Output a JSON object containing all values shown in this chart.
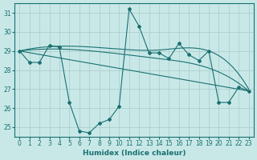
{
  "xlabel": "Humidex (Indice chaleur)",
  "background_color": "#c8e8e8",
  "grid_color": "#aacaca",
  "line_color": "#1a7070",
  "xlim": [
    -0.5,
    23.5
  ],
  "ylim": [
    24.5,
    31.5
  ],
  "yticks": [
    25,
    26,
    27,
    28,
    29,
    30,
    31
  ],
  "xticks": [
    0,
    1,
    2,
    3,
    4,
    5,
    6,
    7,
    8,
    9,
    10,
    11,
    12,
    13,
    14,
    15,
    16,
    17,
    18,
    19,
    20,
    21,
    22,
    23
  ],
  "jagged_x": [
    0,
    1,
    2,
    3,
    4,
    5,
    6,
    7,
    8,
    9,
    10,
    11,
    12,
    13,
    14,
    15,
    16,
    17,
    18,
    19,
    20,
    21,
    22,
    23
  ],
  "jagged_y": [
    29.0,
    28.4,
    28.4,
    29.3,
    29.2,
    26.3,
    24.8,
    24.7,
    25.2,
    25.4,
    26.1,
    31.2,
    30.3,
    28.9,
    28.9,
    28.6,
    29.4,
    28.8,
    28.5,
    29.0,
    26.3,
    26.3,
    27.1,
    26.9
  ],
  "smooth_lines": [
    {
      "x": [
        0,
        4,
        10,
        14,
        19,
        23
      ],
      "y": [
        29.0,
        29.25,
        29.1,
        29.05,
        29.0,
        27.0
      ]
    },
    {
      "x": [
        0,
        4,
        10,
        14,
        19,
        23
      ],
      "y": [
        29.0,
        29.1,
        28.85,
        28.6,
        28.1,
        26.9
      ]
    },
    {
      "x": [
        0,
        23
      ],
      "y": [
        29.0,
        26.9
      ]
    }
  ]
}
